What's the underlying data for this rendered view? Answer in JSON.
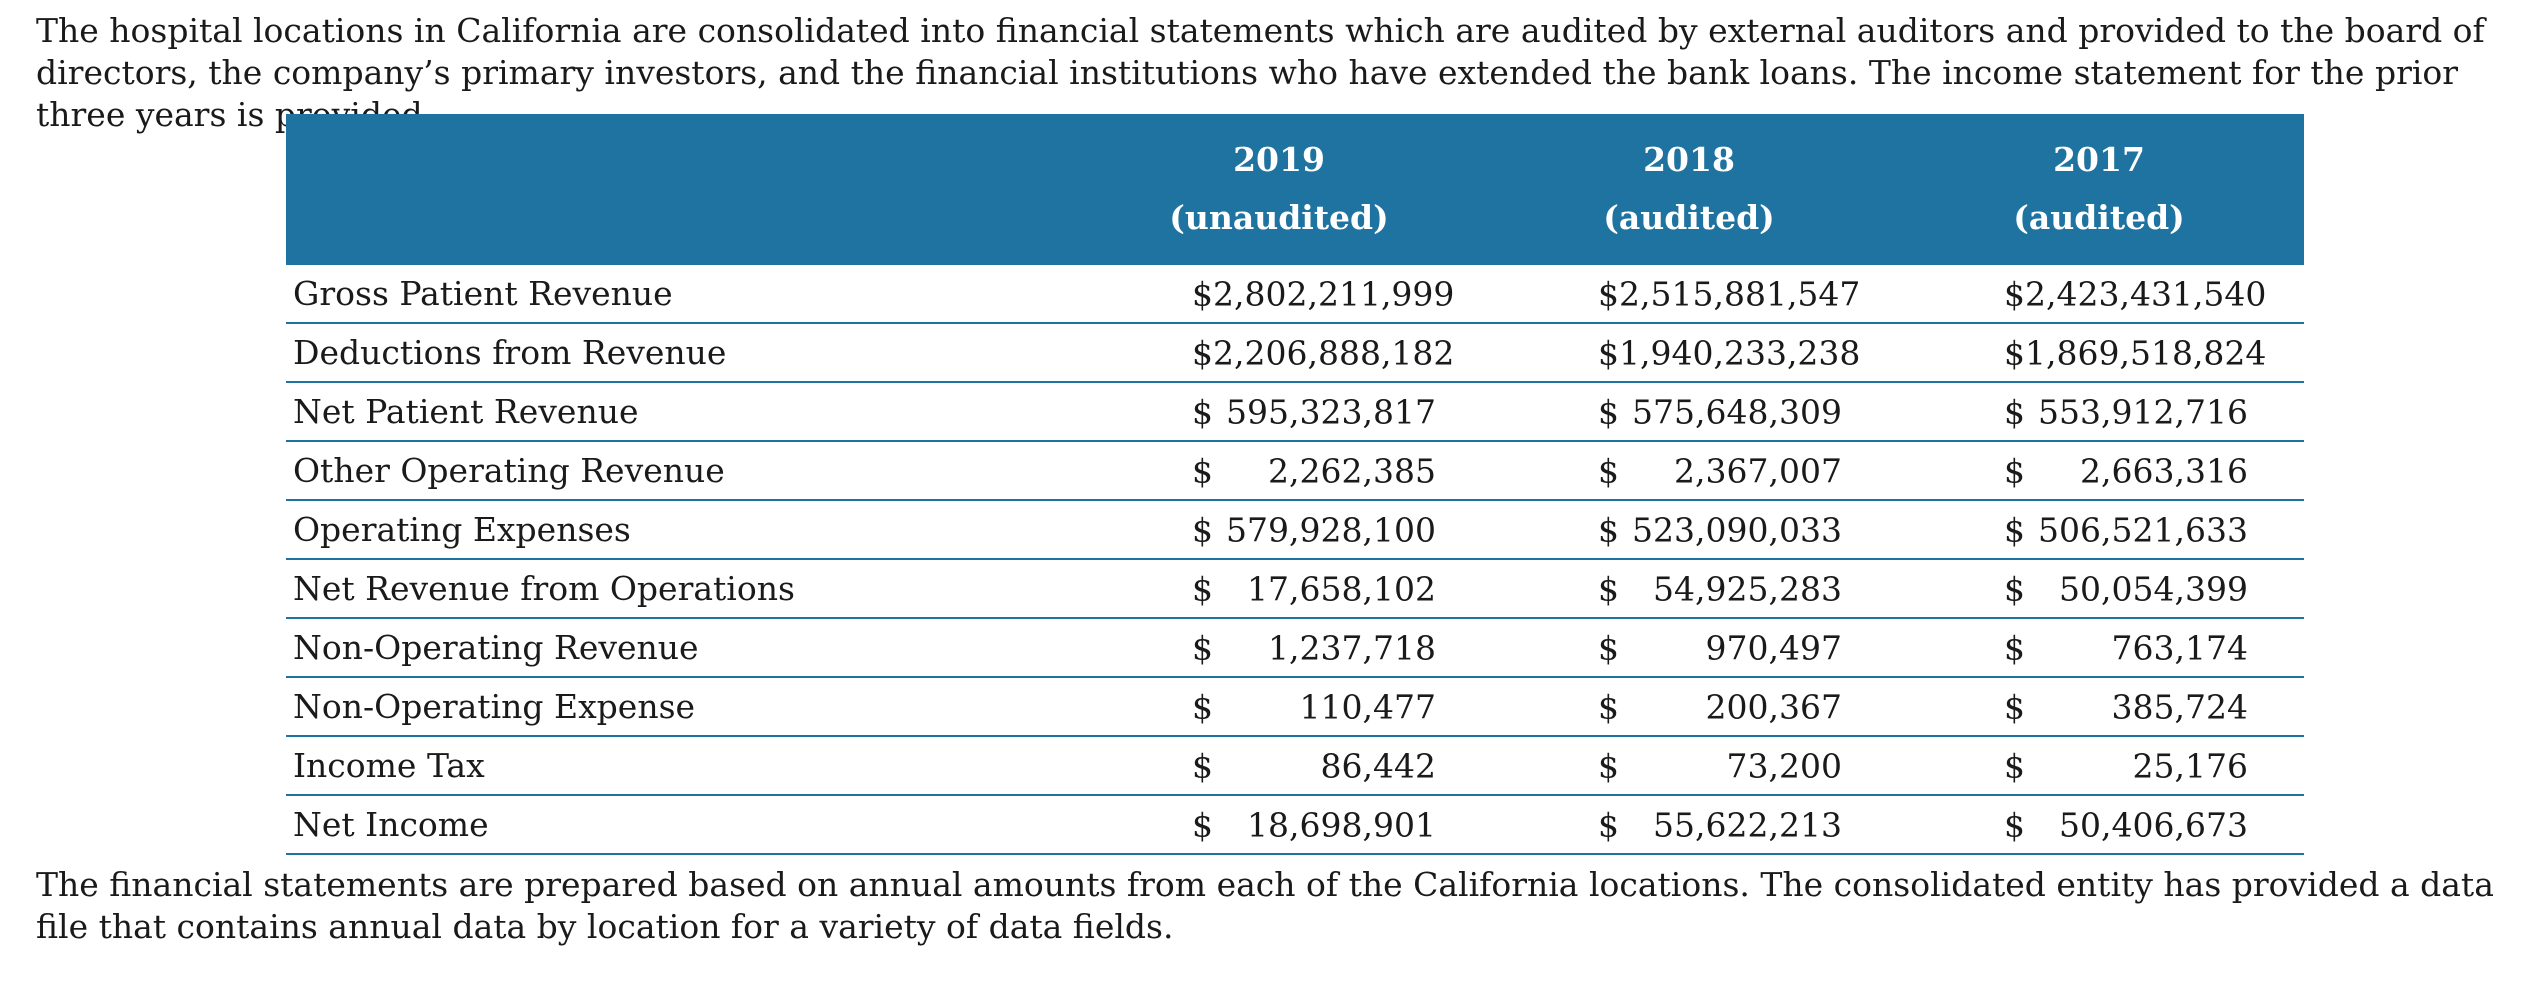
{
  "intro_text": "The hospital locations in California are consolidated into financial statements which are audited by external auditors and provided to the board of directors, the company’s primary investors, and the financial institutions who have extended the bank loans. The income statement for the prior three years is provided.",
  "table": {
    "columns": [
      {
        "year": "2019",
        "status": "(unaudited)"
      },
      {
        "year": "2018",
        "status": "(audited)"
      },
      {
        "year": "2017",
        "status": "(audited)"
      }
    ],
    "rows": [
      {
        "label": "Gross Patient Revenue",
        "values": [
          {
            "sym": "",
            "amt": "$2,802,211,999"
          },
          {
            "sym": "",
            "amt": "$2,515,881,547"
          },
          {
            "sym": "",
            "amt": "$2,423,431,540"
          }
        ]
      },
      {
        "label": "Deductions from Revenue",
        "values": [
          {
            "sym": "",
            "amt": "$2,206,888,182"
          },
          {
            "sym": "",
            "amt": "$1,940,233,238"
          },
          {
            "sym": "",
            "amt": "$1,869,518,824"
          }
        ]
      },
      {
        "label": "Net Patient Revenue",
        "values": [
          {
            "sym": "$",
            "amt": "595,323,817"
          },
          {
            "sym": "$",
            "amt": "575,648,309"
          },
          {
            "sym": "$",
            "amt": "553,912,716"
          }
        ]
      },
      {
        "label": "Other Operating Revenue",
        "values": [
          {
            "sym": "$",
            "amt": "2,262,385"
          },
          {
            "sym": "$",
            "amt": "2,367,007"
          },
          {
            "sym": "$",
            "amt": "2,663,316"
          }
        ]
      },
      {
        "label": "Operating Expenses",
        "values": [
          {
            "sym": "$",
            "amt": "579,928,100"
          },
          {
            "sym": "$",
            "amt": "523,090,033"
          },
          {
            "sym": "$",
            "amt": "506,521,633"
          }
        ]
      },
      {
        "label": "Net Revenue from Operations",
        "values": [
          {
            "sym": "$",
            "amt": "17,658,102"
          },
          {
            "sym": "$",
            "amt": "54,925,283"
          },
          {
            "sym": "$",
            "amt": "50,054,399"
          }
        ]
      },
      {
        "label": "Non-Operating Revenue",
        "values": [
          {
            "sym": "$",
            "amt": "1,237,718"
          },
          {
            "sym": "$",
            "amt": "970,497"
          },
          {
            "sym": "$",
            "amt": "763,174"
          }
        ]
      },
      {
        "label": "Non-Operating Expense",
        "values": [
          {
            "sym": "$",
            "amt": "110,477"
          },
          {
            "sym": "$",
            "amt": "200,367"
          },
          {
            "sym": "$",
            "amt": "385,724"
          }
        ]
      },
      {
        "label": "Income Tax",
        "values": [
          {
            "sym": "$",
            "amt": "86,442"
          },
          {
            "sym": "$",
            "amt": "73,200"
          },
          {
            "sym": "$",
            "amt": "25,176"
          }
        ]
      },
      {
        "label": "Net Income",
        "values": [
          {
            "sym": "$",
            "amt": "18,698,901"
          },
          {
            "sym": "$",
            "amt": "55,622,213"
          },
          {
            "sym": "$",
            "amt": "50,406,673"
          }
        ]
      }
    ]
  },
  "outro_text": "The financial statements are prepared based on annual amounts from each of the California locations. The consolidated entity has provided a data file that contains annual data by location for a variety of data fields.",
  "colors": {
    "header_bg": "#1f73a0",
    "header_text": "#ffffff",
    "rule": "#1f73a0"
  }
}
